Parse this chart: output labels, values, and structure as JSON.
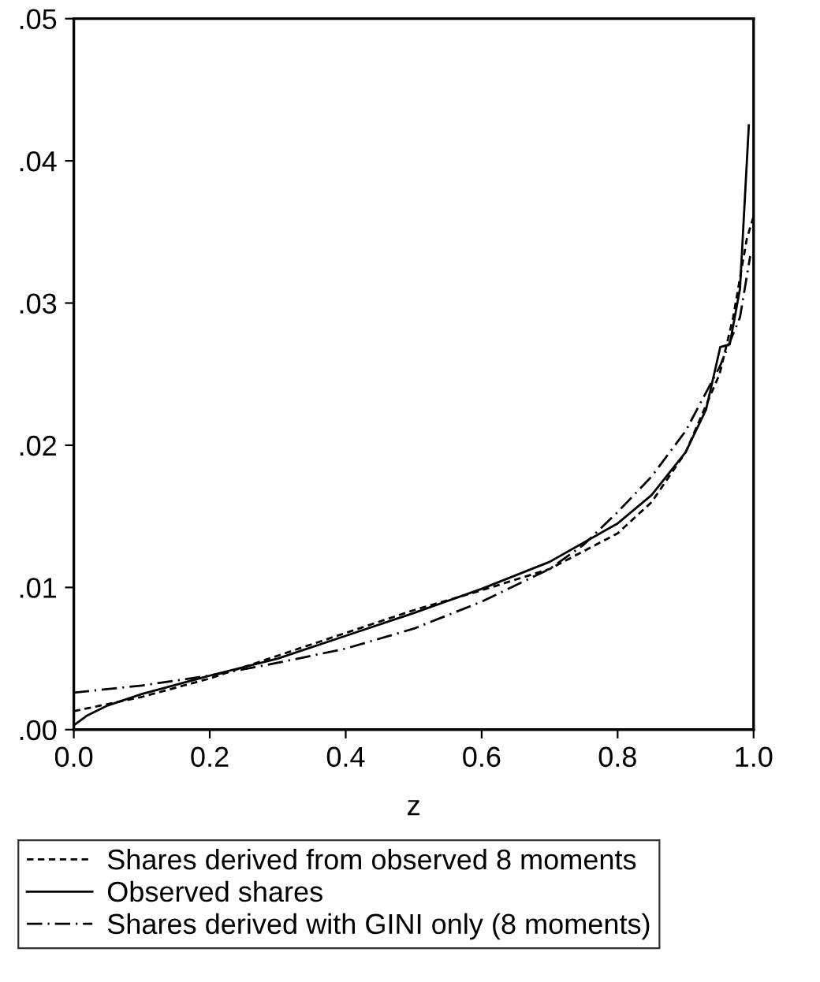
{
  "chart_data": {
    "type": "line",
    "xlabel": "z",
    "xlim": [
      0,
      1
    ],
    "ylim": [
      0,
      0.05
    ],
    "xticks": [
      {
        "value": 0,
        "label": "0.0"
      },
      {
        "value": 0.2,
        "label": "0.2"
      },
      {
        "value": 0.4,
        "label": "0.4"
      },
      {
        "value": 0.6,
        "label": "0.6"
      },
      {
        "value": 0.8,
        "label": "0.8"
      },
      {
        "value": 1,
        "label": "1.0"
      }
    ],
    "yticks": [
      {
        "value": 0,
        "label": ".00"
      },
      {
        "value": 0.01,
        "label": ".01"
      },
      {
        "value": 0.02,
        "label": ".02"
      },
      {
        "value": 0.03,
        "label": ".03"
      },
      {
        "value": 0.04,
        "label": ".04"
      },
      {
        "value": 0.05,
        "label": ".05"
      }
    ],
    "grid": false,
    "legend": "bottom",
    "marker": "none",
    "series": [
      {
        "name": "Shares derived from observed 8 moments",
        "color": "#000000",
        "line_style": "dashed",
        "x": [
          0,
          0.1,
          0.2,
          0.3,
          0.4,
          0.5,
          0.6,
          0.7,
          0.8,
          0.85,
          0.9,
          0.95,
          0.97,
          0.99,
          1.0
        ],
        "values": [
          0.0013,
          0.0023,
          0.0036,
          0.0052,
          0.0068,
          0.0084,
          0.0098,
          0.0113,
          0.0138,
          0.016,
          0.0195,
          0.025,
          0.029,
          0.0345,
          0.0361
        ]
      },
      {
        "name": "Observed shares",
        "color": "#000000",
        "line_style": "solid",
        "x": [
          0,
          0.02,
          0.05,
          0.1,
          0.2,
          0.3,
          0.4,
          0.5,
          0.6,
          0.7,
          0.8,
          0.85,
          0.9,
          0.93,
          0.951,
          0.965,
          0.98,
          0.993
        ],
        "values": [
          0.0003,
          0.001,
          0.0017,
          0.0025,
          0.0038,
          0.005,
          0.0066,
          0.0082,
          0.0099,
          0.0118,
          0.0145,
          0.0165,
          0.0195,
          0.0225,
          0.0269,
          0.0271,
          0.031,
          0.0425
        ]
      },
      {
        "name": "Shares derived with GINI only (8 moments)",
        "color": "#000000",
        "line_style": "dashdot",
        "x": [
          0,
          0.1,
          0.2,
          0.3,
          0.4,
          0.5,
          0.6,
          0.7,
          0.75,
          0.8,
          0.85,
          0.9,
          0.95,
          0.98,
          0.995
        ],
        "values": [
          0.0026,
          0.0031,
          0.0038,
          0.0047,
          0.0057,
          0.0071,
          0.009,
          0.0113,
          0.013,
          0.0153,
          0.0178,
          0.021,
          0.0255,
          0.029,
          0.0333
        ]
      }
    ]
  }
}
